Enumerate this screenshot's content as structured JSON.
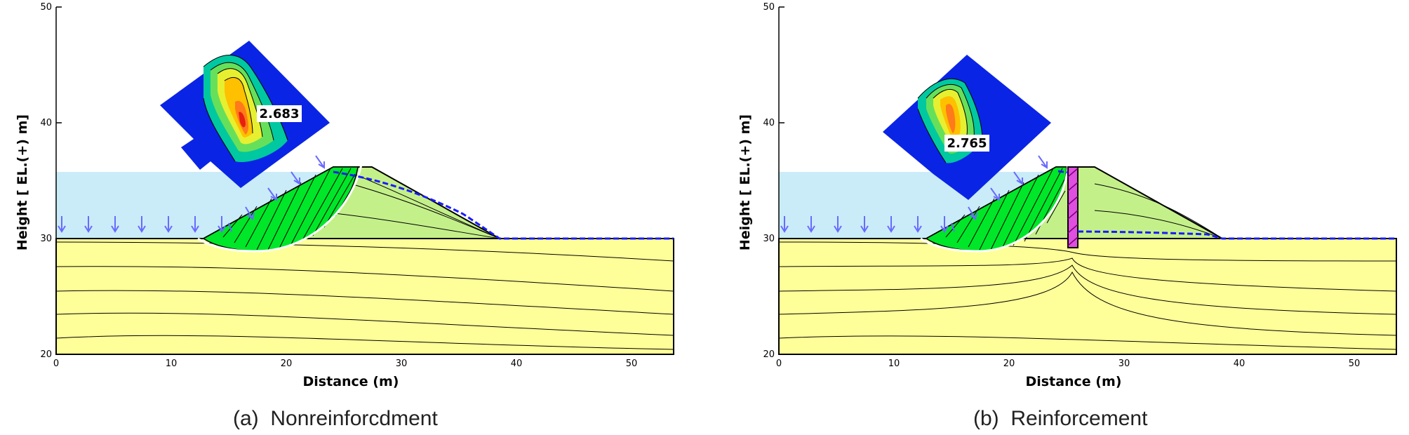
{
  "colors": {
    "water": "#c9ecf8",
    "foundation": "#ffff99",
    "embankment": "#c4f08a",
    "slip_mass": "#00e628",
    "flow_arrow": "#6a6aff",
    "phreatic_line": "#1a1aff",
    "contour_background": "#0a24e6",
    "sheet_pile": "#e04fe0"
  },
  "axes": {
    "x_label": "Distance (m)",
    "y_label": "Height [ EL.(+) m]",
    "x_ticks": [
      "0",
      "10",
      "20",
      "30",
      "40",
      "50"
    ],
    "y_ticks": [
      "20",
      "30",
      "40",
      "50"
    ]
  },
  "panels": [
    {
      "caption_label": "(a)",
      "caption_text": "Nonreinforcdment",
      "factor_of_safety": "2.683",
      "has_sheet_pile": false
    },
    {
      "caption_label": "(b)",
      "caption_text": "Reinforcement",
      "factor_of_safety": "2.765",
      "has_sheet_pile": true
    }
  ]
}
